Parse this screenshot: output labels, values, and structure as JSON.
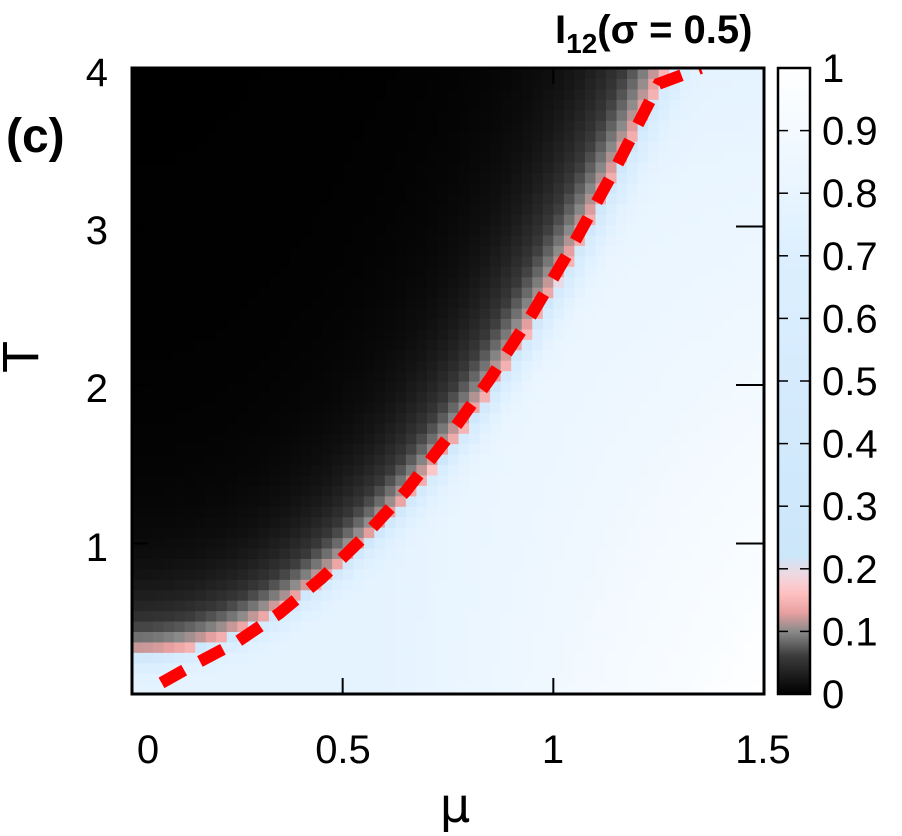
{
  "chart_data": {
    "type": "heatmap",
    "panel_label": "(c)",
    "colorbar_title": {
      "main": "I",
      "sub": "12",
      "rest": "(σ = 0.5)"
    },
    "xlabel": "μ",
    "ylabel": "T",
    "xlim": [
      0,
      1.5
    ],
    "ylim": [
      0.05,
      4
    ],
    "x_ticks": [
      "0",
      "0.5",
      "1",
      "1.5"
    ],
    "x_tick_values": [
      0,
      0.5,
      1,
      1.5
    ],
    "y_ticks": [
      "1",
      "2",
      "3",
      "4"
    ],
    "y_tick_values": [
      1,
      2,
      3,
      4
    ],
    "colorbar": {
      "range": [
        0,
        1
      ],
      "ticks": [
        "0",
        "0.1",
        "0.2",
        "0.3",
        "0.4",
        "0.5",
        "0.6",
        "0.7",
        "0.8",
        "0.9",
        "1"
      ],
      "tick_values": [
        0,
        0.1,
        0.2,
        0.3,
        0.4,
        0.5,
        0.6,
        0.7,
        0.8,
        0.9,
        1
      ]
    },
    "grid": {
      "nx": 60,
      "ny": 60
    },
    "boundary_model": "T_b(mu) = 0.3 + 2.3*mu^2; region T < T_b has I12 ~ 0.8-1, region T > T_b has I12 ~ 0",
    "series": [
      {
        "name": "",
        "style": "red dashed",
        "x": [
          0.07,
          0.15,
          0.25,
          0.35,
          0.45,
          0.55,
          0.65,
          0.75,
          0.85,
          0.95,
          1.05,
          1.15,
          1.25,
          1.35
        ],
        "y": [
          0.12,
          0.24,
          0.38,
          0.56,
          0.78,
          1.04,
          1.33,
          1.67,
          2.04,
          2.45,
          2.9,
          3.38,
          3.9,
          4.0
        ]
      }
    ]
  }
}
